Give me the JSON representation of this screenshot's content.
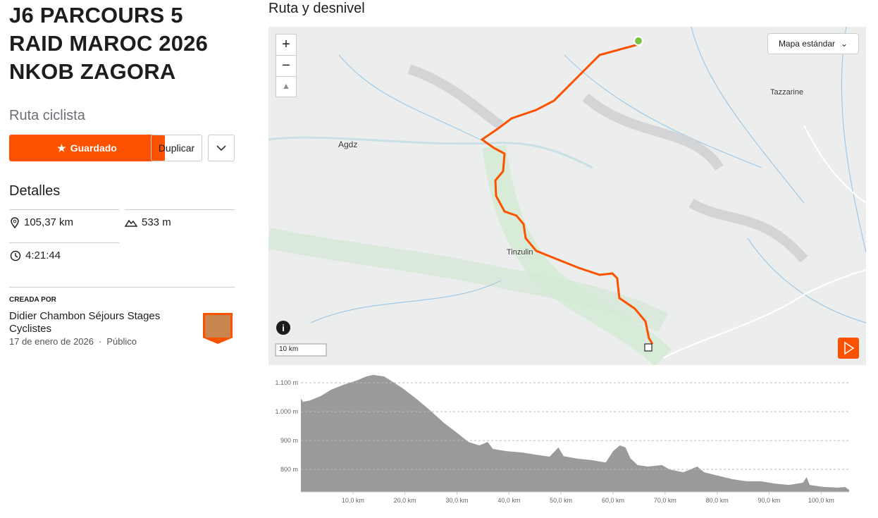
{
  "header": {
    "title_lines": [
      "J6 PARCOURS 5",
      "RAID MAROC 2026",
      "NKOB ZAGORA"
    ],
    "subtitle": "Ruta ciclista"
  },
  "actions": {
    "save": "Guardado",
    "duplicate": "Duplicar"
  },
  "details": {
    "title": "Detalles",
    "distance": "105,37 km",
    "elevation_gain": "533 m",
    "time": "4:21:44"
  },
  "creator": {
    "label": "CREADA POR",
    "name": "Didier Chambon Séjours Stages Cyclistes",
    "date": "17 de enero de 2026",
    "separator": "·",
    "visibility": "Público"
  },
  "section_title": "Ruta y desnivel",
  "map": {
    "style_selector": "Mapa estándar",
    "places": [
      "Agdz",
      "Tazzarine",
      "Tinzulin"
    ],
    "scale": "10 km",
    "zoom_in": "+",
    "zoom_out": "−"
  },
  "chart_data": {
    "type": "area",
    "color": "#9a9a9a",
    "x": [
      0,
      0.4,
      1.8,
      3.8,
      5.8,
      8.5,
      10.6,
      12.6,
      13.9,
      16,
      17.3,
      19.4,
      22.1,
      24.8,
      27.5,
      30.2,
      32.2,
      34.3,
      35.9,
      36.9,
      39.6,
      42.4,
      45.1,
      47.8,
      49.5,
      50.5,
      53.2,
      55.9,
      58.6,
      60,
      61.3,
      62.4,
      63.3,
      64.7,
      66.7,
      69.4,
      70.8,
      73.5,
      76.2,
      77.5,
      80.2,
      83,
      85.7,
      88.4,
      91.1,
      93.8,
      96.5,
      97.2,
      97.8,
      100.5,
      103.2,
      104.6,
      105.37
    ],
    "values": [
      1046,
      1034,
      1039,
      1054,
      1076,
      1095,
      1107,
      1122,
      1127,
      1122,
      1107,
      1083,
      1046,
      1005,
      961,
      924,
      895,
      883,
      895,
      871,
      863,
      859,
      851,
      844,
      876,
      846,
      837,
      832,
      824,
      863,
      883,
      876,
      839,
      815,
      810,
      815,
      800,
      790,
      810,
      790,
      778,
      766,
      759,
      759,
      751,
      746,
      754,
      773,
      746,
      739,
      737,
      739,
      729
    ],
    "xlim": [
      0,
      105.37
    ],
    "ylim": [
      722,
      1132
    ],
    "xticks": [
      {
        "value": 10,
        "label": "10,0 km"
      },
      {
        "value": 20,
        "label": "20,0 km"
      },
      {
        "value": 30,
        "label": "30,0 km"
      },
      {
        "value": 40,
        "label": "40,0 km"
      },
      {
        "value": 50,
        "label": "50,0 km"
      },
      {
        "value": 60,
        "label": "60,0 km"
      },
      {
        "value": 70,
        "label": "70,0 km"
      },
      {
        "value": 80,
        "label": "80,0 km"
      },
      {
        "value": 90,
        "label": "90,0 km"
      },
      {
        "value": 100,
        "label": "100,0 km"
      }
    ],
    "yticks": [
      {
        "value": 800,
        "label": "800 m"
      },
      {
        "value": 900,
        "label": "900 m"
      },
      {
        "value": 1000,
        "label": "1.000 m"
      },
      {
        "value": 1100,
        "label": "1.100 m"
      }
    ],
    "grid": true
  }
}
